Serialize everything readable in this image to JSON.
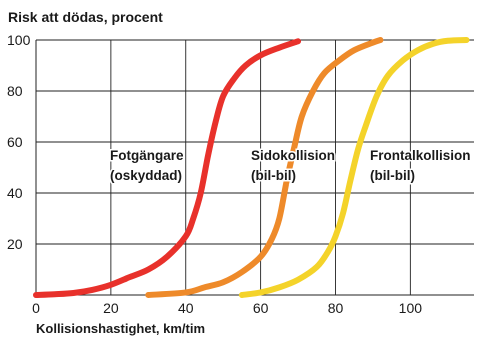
{
  "chart_data": {
    "type": "line",
    "title": "Risk att dödas, procent",
    "xlabel": "Kollisionshastighet, km/tim",
    "ylabel": "",
    "xlim": [
      0,
      117
    ],
    "ylim": [
      0,
      100
    ],
    "x_ticks": [
      0,
      20,
      40,
      60,
      80,
      100
    ],
    "y_ticks": [
      20,
      40,
      60,
      80,
      100
    ],
    "grid": true,
    "series": [
      {
        "label_lines": [
          "Fotgängare",
          "(oskyddad)"
        ],
        "color": "#e8312b",
        "points": [
          [
            0,
            0
          ],
          [
            5,
            0.3
          ],
          [
            10,
            0.8
          ],
          [
            15,
            2
          ],
          [
            20,
            4
          ],
          [
            25,
            7
          ],
          [
            30,
            10
          ],
          [
            35,
            15
          ],
          [
            40,
            23
          ],
          [
            42,
            30
          ],
          [
            44,
            40
          ],
          [
            46,
            55
          ],
          [
            48,
            68
          ],
          [
            50,
            78
          ],
          [
            53,
            85
          ],
          [
            56,
            90
          ],
          [
            60,
            94
          ],
          [
            65,
            97
          ],
          [
            70,
            99.5
          ]
        ]
      },
      {
        "label_lines": [
          "Sidokollision",
          "(bil-bil)"
        ],
        "color": "#ee8a2a",
        "points": [
          [
            30,
            0
          ],
          [
            40,
            1
          ],
          [
            45,
            3
          ],
          [
            50,
            5
          ],
          [
            55,
            9
          ],
          [
            60,
            15
          ],
          [
            63,
            22
          ],
          [
            65,
            30
          ],
          [
            67,
            45
          ],
          [
            69,
            58
          ],
          [
            71,
            70
          ],
          [
            74,
            80
          ],
          [
            77,
            87
          ],
          [
            81,
            92
          ],
          [
            85,
            96
          ],
          [
            90,
            99
          ],
          [
            92,
            100
          ]
        ]
      },
      {
        "label_lines": [
          "Frontalkollision",
          "(bil-bil)"
        ],
        "color": "#f4d32a",
        "points": [
          [
            55,
            0
          ],
          [
            60,
            1
          ],
          [
            65,
            3
          ],
          [
            70,
            6
          ],
          [
            75,
            11
          ],
          [
            78,
            17
          ],
          [
            80,
            23
          ],
          [
            82,
            32
          ],
          [
            84,
            45
          ],
          [
            86,
            57
          ],
          [
            88,
            66
          ],
          [
            91,
            78
          ],
          [
            94,
            86
          ],
          [
            98,
            92
          ],
          [
            102,
            96
          ],
          [
            106,
            98.5
          ],
          [
            110,
            99.7
          ],
          [
            115,
            100
          ]
        ]
      }
    ]
  }
}
